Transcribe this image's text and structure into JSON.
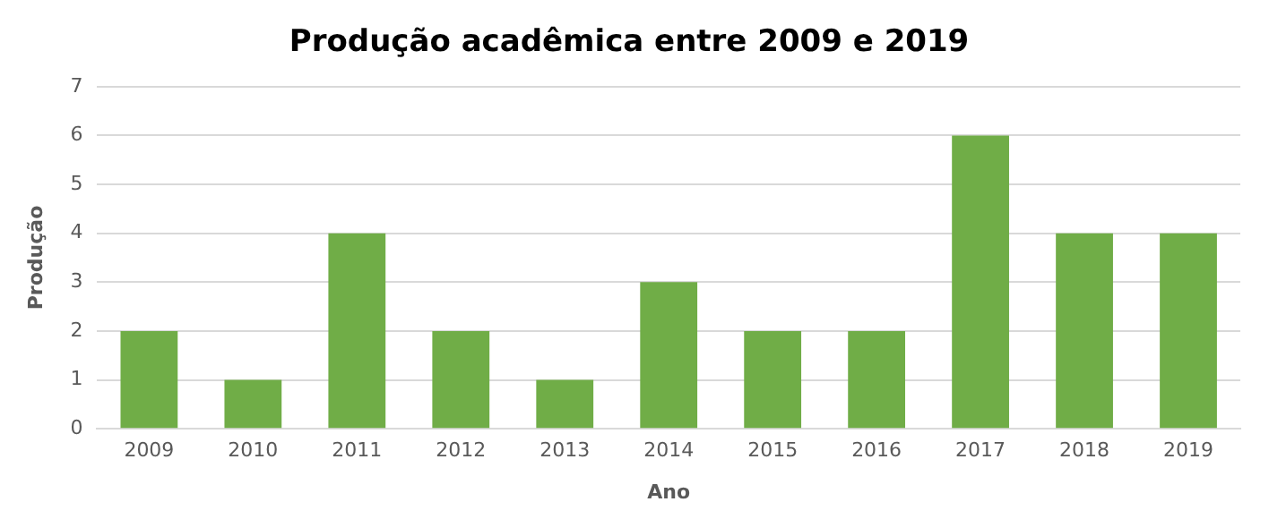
{
  "chart_data": {
    "type": "bar",
    "title": "Produção acadêmica entre 2009 e 2019",
    "xlabel": "Ano",
    "ylabel": "Produção",
    "categories": [
      "2009",
      "2010",
      "2011",
      "2012",
      "2013",
      "2014",
      "2015",
      "2016",
      "2017",
      "2018",
      "2019"
    ],
    "values": [
      2,
      1,
      4,
      2,
      1,
      3,
      2,
      2,
      6,
      4,
      4
    ],
    "color": "#70ad47",
    "ylim": [
      0,
      7
    ],
    "yticks": [
      0,
      1,
      2,
      3,
      4,
      5,
      6,
      7
    ],
    "grid": "y",
    "legend": false
  }
}
